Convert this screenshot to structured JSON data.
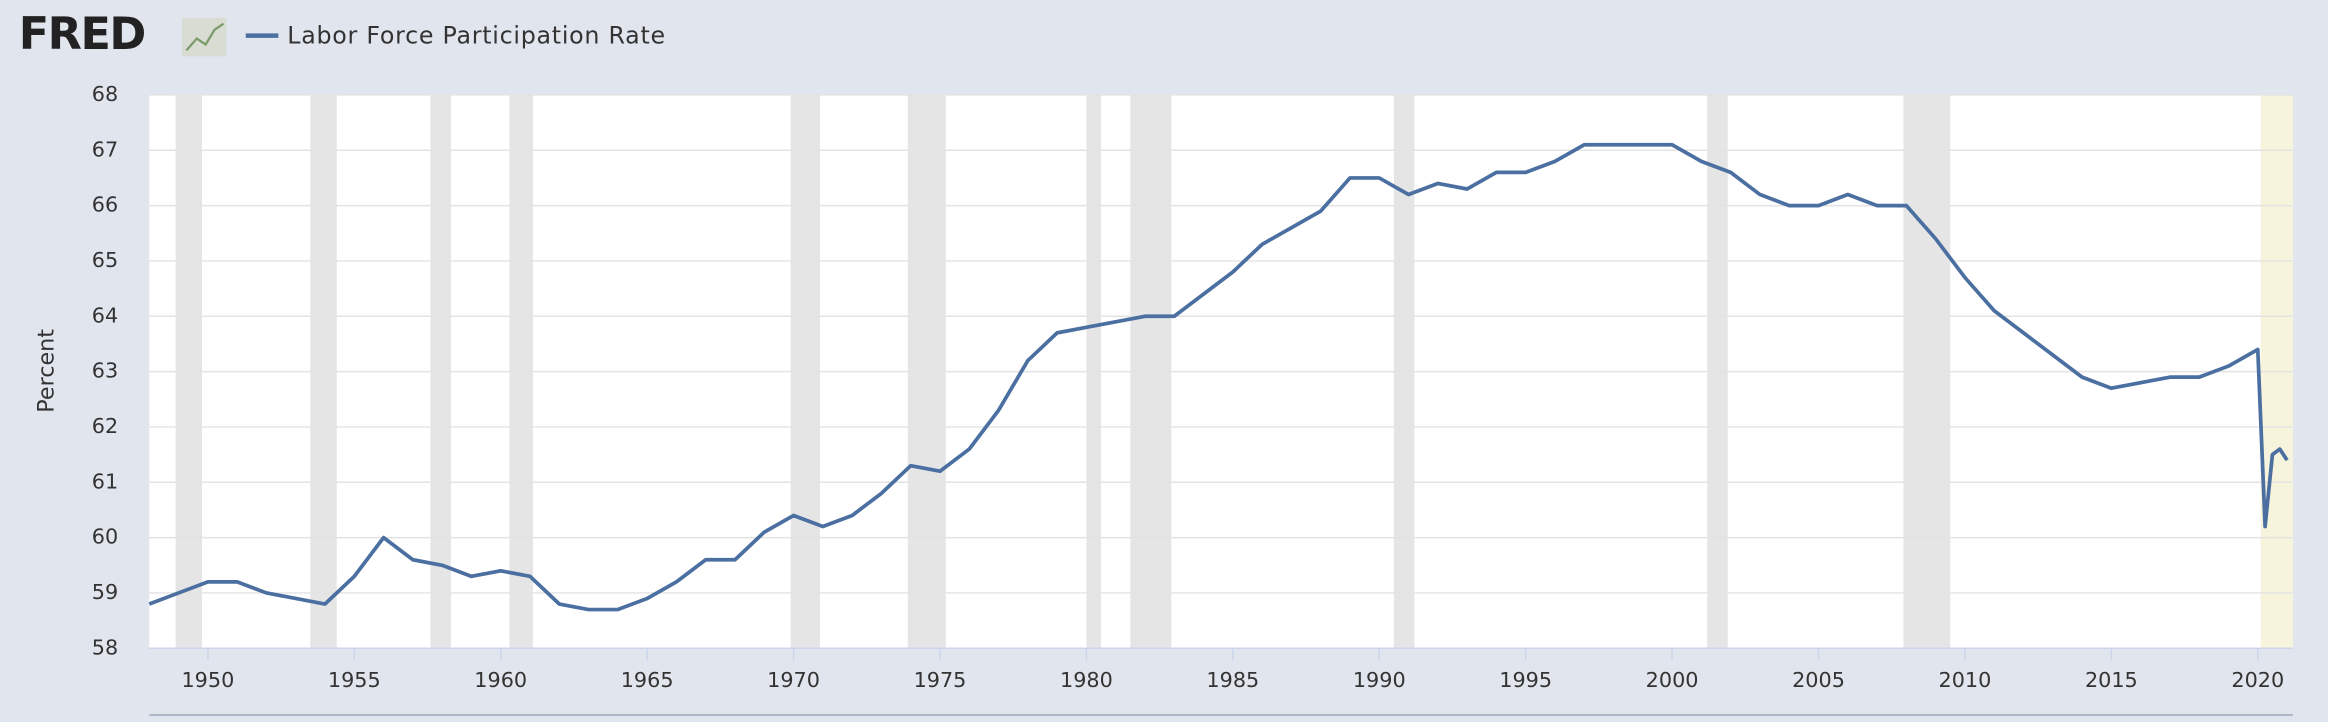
{
  "logo": "FRED",
  "chart_data": {
    "type": "line",
    "y_label": "Percent",
    "x": [
      1948,
      1949,
      1950,
      1951,
      1952,
      1953,
      1954,
      1955,
      1956,
      1957,
      1958,
      1959,
      1960,
      1961,
      1962,
      1963,
      1964,
      1965,
      1966,
      1967,
      1968,
      1969,
      1970,
      1971,
      1972,
      1973,
      1974,
      1975,
      1976,
      1977,
      1978,
      1979,
      1980,
      1981,
      1982,
      1983,
      1984,
      1985,
      1986,
      1987,
      1988,
      1989,
      1990,
      1991,
      1992,
      1993,
      1994,
      1995,
      1996,
      1997,
      1998,
      1999,
      2000,
      2001,
      2002,
      2003,
      2004,
      2005,
      2006,
      2007,
      2008,
      2009,
      2010,
      2011,
      2012,
      2013,
      2014,
      2015,
      2016,
      2017,
      2018,
      2019,
      2020,
      2020.25,
      2020.5,
      2020.75,
      2021
    ],
    "series": [
      {
        "name": "Labor Force Participation Rate",
        "color": "#4a6fa0",
        "values": [
          58.8,
          59.0,
          59.2,
          59.2,
          59.0,
          58.9,
          58.8,
          59.3,
          60.0,
          59.6,
          59.5,
          59.3,
          59.4,
          59.3,
          58.8,
          58.7,
          58.7,
          58.9,
          59.2,
          59.6,
          59.6,
          60.1,
          60.4,
          60.2,
          60.4,
          60.8,
          61.3,
          61.2,
          61.6,
          62.3,
          63.2,
          63.7,
          63.8,
          63.9,
          64.0,
          64.0,
          64.4,
          64.8,
          65.3,
          65.6,
          65.9,
          66.5,
          66.5,
          66.2,
          66.4,
          66.3,
          66.6,
          66.6,
          66.8,
          67.1,
          67.1,
          67.1,
          67.1,
          66.8,
          66.6,
          66.2,
          66.0,
          66.0,
          66.2,
          66.0,
          66.0,
          65.4,
          64.7,
          64.1,
          63.7,
          63.3,
          62.9,
          62.7,
          62.8,
          62.9,
          62.9,
          63.1,
          63.4,
          60.2,
          61.5,
          61.6,
          61.4
        ]
      }
    ],
    "recessions": [
      [
        1948.9,
        1949.8
      ],
      [
        1953.5,
        1954.4
      ],
      [
        1957.6,
        1958.3
      ],
      [
        1960.3,
        1961.1
      ],
      [
        1969.9,
        1970.9
      ],
      [
        1973.9,
        1975.2
      ],
      [
        1980.0,
        1980.5
      ],
      [
        1981.5,
        1982.9
      ],
      [
        1990.5,
        1991.2
      ],
      [
        2001.2,
        2001.9
      ],
      [
        2007.9,
        2009.5
      ]
    ],
    "recession_color": "#e5e5e5",
    "highlight": [
      2020.1,
      2021.2
    ],
    "highlight_color": "#f6f4dc",
    "xlim": [
      1948,
      2021.2
    ],
    "xticks": [
      1950,
      1955,
      1960,
      1965,
      1970,
      1975,
      1980,
      1985,
      1990,
      1995,
      2000,
      2005,
      2010,
      2015,
      2020
    ],
    "ylim": [
      58,
      68
    ],
    "yticks": [
      58,
      59,
      60,
      61,
      62,
      63,
      64,
      65,
      66,
      67,
      68
    ],
    "grid": true
  }
}
